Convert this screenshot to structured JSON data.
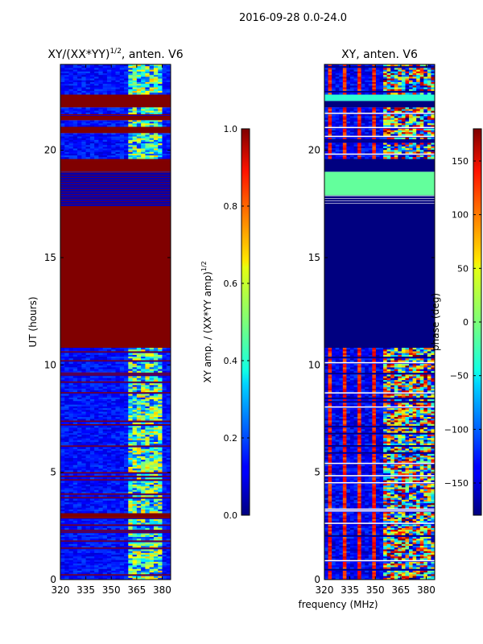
{
  "suptitle": "2016-09-28 0.0-24.0",
  "shared_xlabel": "frequency (MHz)",
  "chart_data": [
    {
      "type": "heatmap",
      "title_main": "XY/(XX*YY)",
      "title_sup": "1/2",
      "title_tail": ", anten. V6",
      "xlabel": "",
      "ylabel": "UT (hours)",
      "xlim": [
        320,
        385
      ],
      "ylim": [
        0,
        24
      ],
      "xticks": [
        320,
        335,
        350,
        365,
        380
      ],
      "yticks": [
        0,
        5,
        10,
        15,
        20
      ],
      "colormap": "jet",
      "colorbar": {
        "label_main": "XY amp. / (XX*YY amp)",
        "label_sup": "1/2",
        "range": [
          0.0,
          1.0
        ],
        "ticks": [
          "0.0",
          "0.2",
          "0.4",
          "0.6",
          "0.8",
          "1.0"
        ],
        "tick_values": [
          0.0,
          0.2,
          0.4,
          0.6,
          0.8,
          1.0
        ]
      },
      "bands": [
        {
          "from": 0.0,
          "to": 2.9,
          "value": 0.1,
          "pattern": "mixed"
        },
        {
          "from": 2.9,
          "to": 3.1,
          "value": 1.0
        },
        {
          "from": 3.1,
          "to": 10.8,
          "value": 0.1,
          "pattern": "mixed"
        },
        {
          "from": 10.8,
          "to": 17.4,
          "value": 1.0
        },
        {
          "from": 17.4,
          "to": 19.0,
          "value": 0.05,
          "pattern": "lines"
        },
        {
          "from": 19.0,
          "to": 19.6,
          "value": 1.0
        },
        {
          "from": 19.6,
          "to": 20.8,
          "value": 0.1,
          "pattern": "mixed"
        },
        {
          "from": 20.8,
          "to": 21.1,
          "value": 1.0
        },
        {
          "from": 21.1,
          "to": 21.4,
          "value": 0.1,
          "pattern": "mixed"
        },
        {
          "from": 21.4,
          "to": 21.6,
          "value": 1.0
        },
        {
          "from": 21.6,
          "to": 22.0,
          "value": 0.1,
          "pattern": "mixed"
        },
        {
          "from": 22.0,
          "to": 22.6,
          "value": 1.0
        },
        {
          "from": 22.6,
          "to": 24.0,
          "value": 0.1,
          "pattern": "mixed"
        }
      ]
    },
    {
      "type": "heatmap",
      "title_main": "XY, anten. V6",
      "title_sup": "",
      "title_tail": "",
      "xlabel": "",
      "ylabel": "",
      "xlim": [
        320,
        385
      ],
      "ylim": [
        0,
        24
      ],
      "xticks": [
        320,
        335,
        350,
        365,
        380
      ],
      "yticks": [
        0,
        5,
        10,
        15,
        20
      ],
      "colormap": "jet",
      "colorbar": {
        "label_main": "phase (deg)",
        "label_sup": "",
        "range": [
          -180,
          180
        ],
        "ticks": [
          "−150",
          "−100",
          "−50",
          "0",
          "50",
          "100",
          "150"
        ],
        "tick_values": [
          -150,
          -100,
          -50,
          0,
          50,
          100,
          150
        ]
      },
      "bands": [
        {
          "from": 0.0,
          "to": 2.9,
          "value": -150,
          "pattern": "mixed"
        },
        {
          "from": 2.9,
          "to": 9.3,
          "value": -150,
          "pattern": "mixed"
        },
        {
          "from": 9.3,
          "to": 10.8,
          "value": -150,
          "pattern": "mixed"
        },
        {
          "from": 10.8,
          "to": 17.4,
          "value": -180
        },
        {
          "from": 17.4,
          "to": 17.9,
          "value": -180,
          "pattern": "lines"
        },
        {
          "from": 17.9,
          "to": 19.0,
          "value": -10
        },
        {
          "from": 19.0,
          "to": 19.6,
          "value": -180
        },
        {
          "from": 19.6,
          "to": 22.0,
          "value": -150,
          "pattern": "mixed"
        },
        {
          "from": 22.0,
          "to": 22.3,
          "value": -180
        },
        {
          "from": 22.3,
          "to": 22.6,
          "value": -30
        },
        {
          "from": 22.6,
          "to": 24.0,
          "value": -150,
          "pattern": "mixed"
        }
      ]
    }
  ]
}
